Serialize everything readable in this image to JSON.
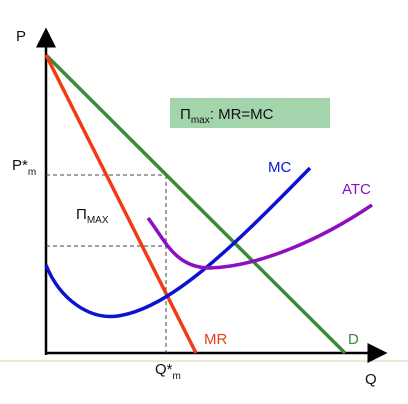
{
  "axes": {
    "y_label": "P",
    "x_label": "Q"
  },
  "price_label": {
    "main": "P*",
    "sub": "m"
  },
  "quantity_label": {
    "main": "Q*",
    "sub": "m"
  },
  "profit_label": {
    "main": "Π",
    "sub": "MAX"
  },
  "condition_box": {
    "main": "Π",
    "sub": "max",
    "rest": ": MR=MC"
  },
  "curves": {
    "mc": "MC",
    "atc": "ATC",
    "mr": "MR",
    "d": "D"
  }
}
